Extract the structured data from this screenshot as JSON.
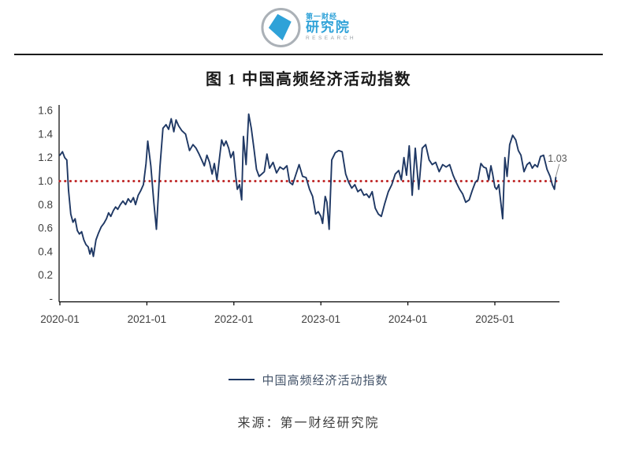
{
  "header": {
    "logo": {
      "name_cn_small": "第一财经",
      "name_cn_large": "研究院",
      "name_en": "RESEARCH",
      "accent_color": "#2fa2d8"
    }
  },
  "figure": {
    "title": "图 1 中国高频经济活动指数"
  },
  "legend": {
    "label": "中国高频经济活动指数"
  },
  "source": {
    "text": "来源：第一财经研究院"
  },
  "chart_data": {
    "type": "line",
    "title": "图 1 中国高频经济活动指数",
    "xlabel": "",
    "ylabel": "",
    "x_unit": "decimal_year",
    "x_range": [
      2020.0,
      2025.75
    ],
    "ylim": [
      0,
      1.6
    ],
    "grid": false,
    "legend_position": "bottom",
    "x_ticks": [
      [
        "2020-01",
        2020
      ],
      [
        "2021-01",
        2021
      ],
      [
        "2022-01",
        2022
      ],
      [
        "2023-01",
        2023
      ],
      [
        "2024-01",
        2024
      ],
      [
        "2025-01",
        2025
      ]
    ],
    "y_ticks": [
      [
        "1.6",
        1.6
      ],
      [
        "1.4",
        1.4
      ],
      [
        "1.2",
        1.2
      ],
      [
        "1.0",
        1.0
      ],
      [
        "0.8",
        0.8
      ],
      [
        "0.6",
        0.6
      ],
      [
        "0.4",
        0.4
      ],
      [
        "0.2",
        0.2
      ],
      [
        "-",
        0
      ]
    ],
    "reference_line": {
      "value": 1.0,
      "color": "#c02b2b",
      "style": "dotted"
    },
    "annotation": {
      "text": "1.03",
      "attached_to": "last-point"
    },
    "axis_color": "#000000",
    "series": [
      {
        "name": "中国高频经济活动指数",
        "color": "#1f3864",
        "points": [
          [
            2020.0,
            1.22
          ],
          [
            2020.03,
            1.25
          ],
          [
            2020.055,
            1.2
          ],
          [
            2020.08,
            1.18
          ],
          [
            2020.1,
            0.92
          ],
          [
            2020.125,
            0.72
          ],
          [
            2020.15,
            0.65
          ],
          [
            2020.175,
            0.68
          ],
          [
            2020.2,
            0.58
          ],
          [
            2020.225,
            0.55
          ],
          [
            2020.25,
            0.57
          ],
          [
            2020.275,
            0.5
          ],
          [
            2020.3,
            0.46
          ],
          [
            2020.325,
            0.44
          ],
          [
            2020.345,
            0.38
          ],
          [
            2020.365,
            0.43
          ],
          [
            2020.385,
            0.36
          ],
          [
            2020.415,
            0.5
          ],
          [
            2020.445,
            0.56
          ],
          [
            2020.475,
            0.61
          ],
          [
            2020.505,
            0.64
          ],
          [
            2020.535,
            0.68
          ],
          [
            2020.56,
            0.73
          ],
          [
            2020.585,
            0.7
          ],
          [
            2020.615,
            0.75
          ],
          [
            2020.64,
            0.78
          ],
          [
            2020.665,
            0.76
          ],
          [
            2020.695,
            0.8
          ],
          [
            2020.725,
            0.83
          ],
          [
            2020.755,
            0.8
          ],
          [
            2020.785,
            0.85
          ],
          [
            2020.815,
            0.82
          ],
          [
            2020.845,
            0.86
          ],
          [
            2020.87,
            0.8
          ],
          [
            2020.9,
            0.88
          ],
          [
            2020.93,
            0.92
          ],
          [
            2020.96,
            0.97
          ],
          [
            2020.99,
            1.15
          ],
          [
            2021.01,
            1.34
          ],
          [
            2021.045,
            1.13
          ],
          [
            2021.08,
            0.82
          ],
          [
            2021.11,
            0.59
          ],
          [
            2021.15,
            1.12
          ],
          [
            2021.185,
            1.45
          ],
          [
            2021.22,
            1.48
          ],
          [
            2021.25,
            1.44
          ],
          [
            2021.28,
            1.53
          ],
          [
            2021.31,
            1.42
          ],
          [
            2021.335,
            1.52
          ],
          [
            2021.365,
            1.47
          ],
          [
            2021.4,
            1.43
          ],
          [
            2021.445,
            1.4
          ],
          [
            2021.49,
            1.26
          ],
          [
            2021.53,
            1.31
          ],
          [
            2021.565,
            1.28
          ],
          [
            2021.6,
            1.23
          ],
          [
            2021.63,
            1.18
          ],
          [
            2021.66,
            1.13
          ],
          [
            2021.69,
            1.22
          ],
          [
            2021.72,
            1.16
          ],
          [
            2021.75,
            1.06
          ],
          [
            2021.775,
            1.15
          ],
          [
            2021.805,
            1.01
          ],
          [
            2021.835,
            1.2
          ],
          [
            2021.86,
            1.35
          ],
          [
            2021.885,
            1.3
          ],
          [
            2021.91,
            1.34
          ],
          [
            2021.94,
            1.28
          ],
          [
            2021.965,
            1.2
          ],
          [
            2021.995,
            1.25
          ],
          [
            2022.02,
            1.05
          ],
          [
            2022.04,
            0.93
          ],
          [
            2022.065,
            0.97
          ],
          [
            2022.09,
            0.84
          ],
          [
            2022.11,
            1.38
          ],
          [
            2022.14,
            1.14
          ],
          [
            2022.17,
            1.57
          ],
          [
            2022.2,
            1.45
          ],
          [
            2022.23,
            1.28
          ],
          [
            2022.26,
            1.1
          ],
          [
            2022.29,
            1.04
          ],
          [
            2022.32,
            1.06
          ],
          [
            2022.35,
            1.08
          ],
          [
            2022.38,
            1.23
          ],
          [
            2022.41,
            1.11
          ],
          [
            2022.45,
            1.16
          ],
          [
            2022.49,
            1.07
          ],
          [
            2022.53,
            1.12
          ],
          [
            2022.57,
            1.1
          ],
          [
            2022.61,
            1.13
          ],
          [
            2022.64,
            0.99
          ],
          [
            2022.675,
            0.97
          ],
          [
            2022.71,
            1.05
          ],
          [
            2022.75,
            1.14
          ],
          [
            2022.79,
            1.04
          ],
          [
            2022.83,
            1.03
          ],
          [
            2022.87,
            0.93
          ],
          [
            2022.905,
            0.87
          ],
          [
            2022.94,
            0.72
          ],
          [
            2022.97,
            0.74
          ],
          [
            2023.0,
            0.7
          ],
          [
            2023.02,
            0.64
          ],
          [
            2023.05,
            0.87
          ],
          [
            2023.07,
            0.82
          ],
          [
            2023.095,
            0.59
          ],
          [
            2023.125,
            1.18
          ],
          [
            2023.165,
            1.24
          ],
          [
            2023.205,
            1.26
          ],
          [
            2023.245,
            1.25
          ],
          [
            2023.285,
            1.06
          ],
          [
            2023.32,
            0.99
          ],
          [
            2023.355,
            0.94
          ],
          [
            2023.39,
            0.97
          ],
          [
            2023.425,
            0.91
          ],
          [
            2023.46,
            0.93
          ],
          [
            2023.495,
            0.88
          ],
          [
            2023.525,
            0.89
          ],
          [
            2023.555,
            0.86
          ],
          [
            2023.59,
            0.91
          ],
          [
            2023.625,
            0.77
          ],
          [
            2023.66,
            0.72
          ],
          [
            2023.695,
            0.7
          ],
          [
            2023.735,
            0.81
          ],
          [
            2023.775,
            0.91
          ],
          [
            2023.815,
            0.97
          ],
          [
            2023.855,
            1.06
          ],
          [
            2023.895,
            1.09
          ],
          [
            2023.925,
            1.01
          ],
          [
            2023.955,
            1.2
          ],
          [
            2023.985,
            1.05
          ],
          [
            2024.015,
            1.3
          ],
          [
            2024.05,
            0.88
          ],
          [
            2024.085,
            1.28
          ],
          [
            2024.125,
            0.93
          ],
          [
            2024.165,
            1.28
          ],
          [
            2024.205,
            1.31
          ],
          [
            2024.245,
            1.18
          ],
          [
            2024.28,
            1.14
          ],
          [
            2024.32,
            1.16
          ],
          [
            2024.36,
            1.08
          ],
          [
            2024.4,
            1.14
          ],
          [
            2024.44,
            1.12
          ],
          [
            2024.48,
            1.14
          ],
          [
            2024.52,
            1.05
          ],
          [
            2024.555,
            0.99
          ],
          [
            2024.595,
            0.93
          ],
          [
            2024.63,
            0.89
          ],
          [
            2024.665,
            0.82
          ],
          [
            2024.705,
            0.84
          ],
          [
            2024.74,
            0.92
          ],
          [
            2024.775,
            0.99
          ],
          [
            2024.805,
            1.01
          ],
          [
            2024.84,
            1.15
          ],
          [
            2024.87,
            1.12
          ],
          [
            2024.9,
            1.11
          ],
          [
            2024.93,
            1.01
          ],
          [
            2024.955,
            1.13
          ],
          [
            2024.975,
            1.06
          ],
          [
            2025.0,
            0.95
          ],
          [
            2025.02,
            0.93
          ],
          [
            2025.045,
            0.97
          ],
          [
            2025.07,
            0.81
          ],
          [
            2025.09,
            0.68
          ],
          [
            2025.115,
            1.2
          ],
          [
            2025.14,
            1.04
          ],
          [
            2025.17,
            1.31
          ],
          [
            2025.205,
            1.39
          ],
          [
            2025.24,
            1.35
          ],
          [
            2025.27,
            1.26
          ],
          [
            2025.3,
            1.22
          ],
          [
            2025.335,
            1.08
          ],
          [
            2025.37,
            1.14
          ],
          [
            2025.4,
            1.16
          ],
          [
            2025.43,
            1.11
          ],
          [
            2025.46,
            1.14
          ],
          [
            2025.49,
            1.12
          ],
          [
            2025.525,
            1.21
          ],
          [
            2025.56,
            1.22
          ],
          [
            2025.6,
            1.1
          ],
          [
            2025.635,
            1.04
          ],
          [
            2025.66,
            0.97
          ],
          [
            2025.685,
            0.93
          ],
          [
            2025.7,
            1.03
          ]
        ]
      }
    ]
  }
}
